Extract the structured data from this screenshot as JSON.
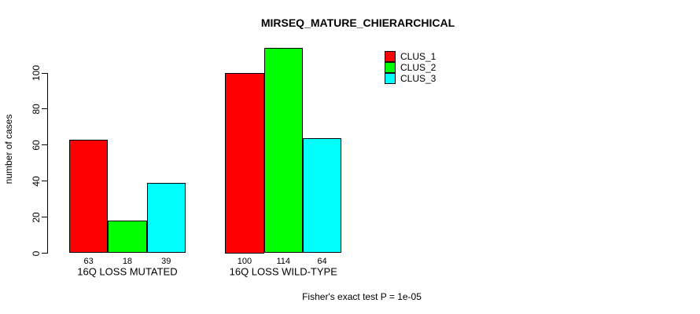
{
  "background": "#ffffff",
  "chart_data": {
    "type": "bar",
    "title": "MIRSEQ_MATURE_CHIERARCHICAL",
    "ylabel": "number of cases",
    "xlabel": "",
    "categories": [
      "16Q LOSS MUTATED",
      "16Q LOSS WILD-TYPE"
    ],
    "series": [
      {
        "name": "CLUS_1",
        "color": "#ff0000",
        "values": [
          63,
          100
        ]
      },
      {
        "name": "CLUS_2",
        "color": "#00ff00",
        "values": [
          18,
          114
        ]
      },
      {
        "name": "CLUS_3",
        "color": "#00ffff",
        "values": [
          39,
          64
        ]
      }
    ],
    "yticks": [
      0,
      20,
      40,
      60,
      80,
      100
    ],
    "ylim": [
      0,
      115
    ],
    "grid": false,
    "legend_position": "top-right",
    "bar_value_labels": true,
    "bar_border_color": "#000000",
    "annotation": "Fisher's exact test P = 1e-05"
  }
}
